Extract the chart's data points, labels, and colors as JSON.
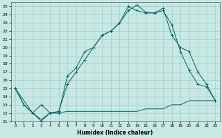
{
  "title": "",
  "xlabel": "Humidex (Indice chaleur)",
  "xlim": [
    -0.5,
    23.5
  ],
  "ylim": [
    11,
    25.5
  ],
  "xticks": [
    0,
    1,
    2,
    3,
    4,
    5,
    6,
    7,
    8,
    9,
    10,
    11,
    12,
    13,
    14,
    15,
    16,
    17,
    18,
    19,
    20,
    21,
    22,
    23
  ],
  "yticks": [
    11,
    12,
    13,
    14,
    15,
    16,
    17,
    18,
    19,
    20,
    21,
    22,
    23,
    24,
    25
  ],
  "bg_color": "#c8e8e4",
  "grid_color": "#9ecece",
  "line_color": "#006060",
  "l1x": [
    0,
    1,
    2,
    3,
    4,
    5,
    6,
    7,
    8,
    9,
    10,
    11,
    12,
    13,
    14,
    15,
    16,
    17,
    18,
    19,
    20,
    21,
    22,
    23
  ],
  "l1y": [
    15,
    13,
    12,
    11,
    12,
    12,
    16.5,
    17.5,
    19.5,
    20,
    21.5,
    22,
    23,
    24.5,
    25.2,
    24.3,
    24.2,
    24.5,
    22.8,
    19.5,
    17.2,
    15.5,
    15.2,
    13.5
  ],
  "l2x": [
    0,
    1,
    2,
    3,
    4,
    5,
    6,
    7,
    8,
    9,
    10,
    11,
    12,
    13,
    14,
    15,
    16,
    17,
    18,
    19,
    20,
    21,
    22,
    23
  ],
  "l2y": [
    15,
    13,
    12,
    11.2,
    12.0,
    12.0,
    12.2,
    12.2,
    12.2,
    12.2,
    12.2,
    12.2,
    12.2,
    12.2,
    12.2,
    12.5,
    12.5,
    12.5,
    13.0,
    13.0,
    13.5,
    13.5,
    13.5,
    13.5
  ],
  "l3x": [
    0,
    2,
    3,
    4,
    5,
    6,
    7,
    8,
    9,
    10,
    11,
    12,
    13,
    14,
    15,
    16,
    17,
    18,
    19,
    20,
    21,
    22,
    23
  ],
  "l3y": [
    15,
    12,
    13,
    12,
    12.2,
    15.5,
    17,
    18.5,
    20,
    21.5,
    22,
    23,
    25,
    24.5,
    24.2,
    24.2,
    24.8,
    21.5,
    20,
    19.5,
    17,
    15.5,
    13.5
  ]
}
